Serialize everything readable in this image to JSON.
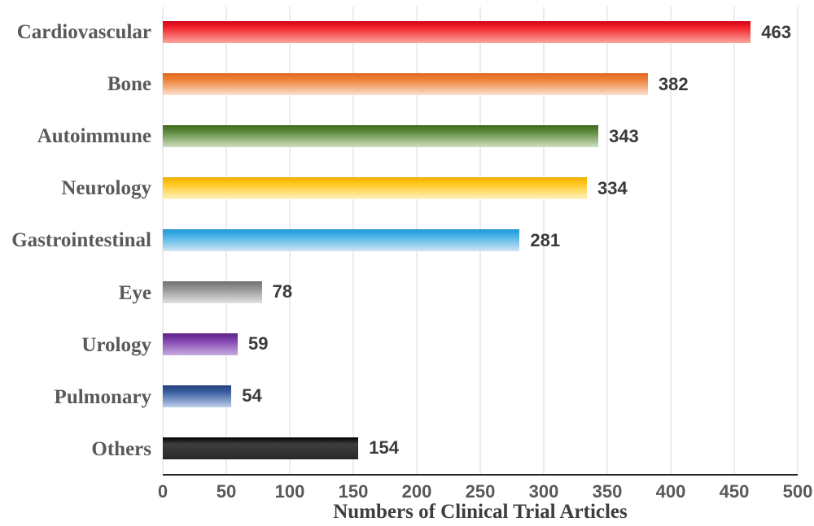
{
  "chart_data": {
    "type": "bar",
    "orientation": "horizontal",
    "title": "",
    "xlabel": "Numbers of Clinical Trial Articles",
    "ylabel": "",
    "xlim": [
      0,
      500
    ],
    "x_ticks": [
      0,
      50,
      100,
      150,
      200,
      250,
      300,
      350,
      400,
      450,
      500
    ],
    "grid": true,
    "legend": false,
    "categories": [
      "Cardiovascular",
      "Bone",
      "Autoimmune",
      "Neurology",
      "Gastrointestinal",
      "Eye",
      "Urology",
      "Pulmonary",
      "Others"
    ],
    "values": [
      463,
      382,
      343,
      334,
      281,
      78,
      59,
      54,
      154
    ],
    "value_labels": [
      "463",
      "382",
      "343",
      "334",
      "281",
      "78",
      "59",
      "54",
      "154"
    ],
    "bar_gradients": [
      [
        "#d3031c",
        "#f1242b",
        "#fba79d"
      ],
      [
        "#e06a1f",
        "#ee8138",
        "#fbe0cf"
      ],
      [
        "#41691f",
        "#5d8a3c",
        "#cfe0c0"
      ],
      [
        "#f0ad00",
        "#ffc81e",
        "#fff3c0"
      ],
      [
        "#2097d4",
        "#45b1e6",
        "#d1e4f4"
      ],
      [
        "#6f6f6f",
        "#909090",
        "#e0e0e0"
      ],
      [
        "#5c2383",
        "#7e3fae",
        "#c6abdd"
      ],
      [
        "#24407a",
        "#3a5da0",
        "#bdcfeb"
      ],
      [
        "#000000",
        "#3d3d3d",
        "#2a2a2a"
      ]
    ]
  },
  "colors": {
    "background": "#ffffff",
    "gridline": "#d9d9d9",
    "axis_line": "#262626",
    "category_label": "#595959",
    "tick_label": "#595959",
    "value_label": "#3a3a3a",
    "axis_title": "#3d3d3d"
  }
}
